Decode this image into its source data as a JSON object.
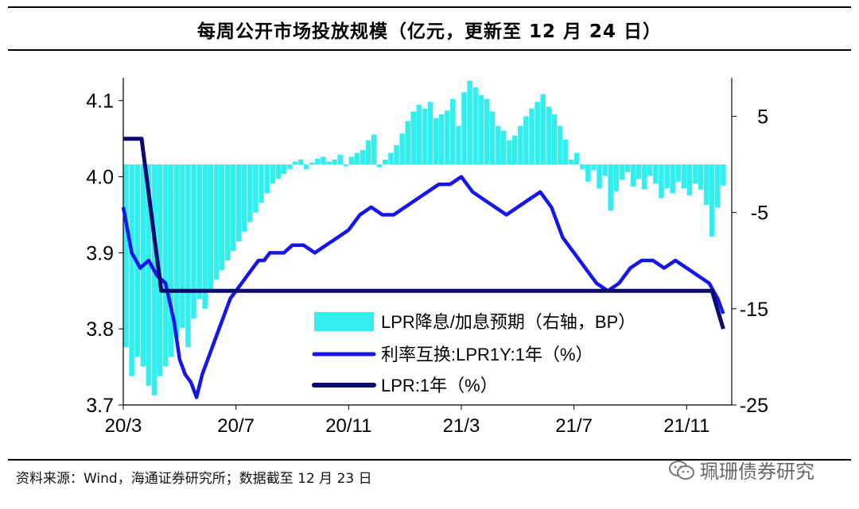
{
  "title": "每周公开市场投放规模（亿元，更新至 12 月 24 日）",
  "source": "资料来源：Wind，海通证券研究所；数据截至 12 月 23 日",
  "watermark": "珮珊债券研究",
  "colors": {
    "bar": "#33EEEE",
    "swap": "#1515EE",
    "lpr": "#0A0A70"
  },
  "chart_data": {
    "type": "bar+line",
    "title": "每周公开市场投放规模（亿元，更新至 12 月 24 日）",
    "x_ticks": [
      "20/3",
      "20/7",
      "20/11",
      "21/3",
      "21/7",
      "21/11"
    ],
    "x_tick_positions": [
      0,
      4,
      8,
      12,
      16,
      20
    ],
    "x_range": [
      0,
      21.6
    ],
    "y_left": {
      "ticks": [
        "4.1",
        "4.0",
        "3.9",
        "3.8",
        "3.7"
      ],
      "tick_values": [
        4.1,
        4.0,
        3.9,
        3.8,
        3.7
      ],
      "range": [
        3.7,
        4.13
      ]
    },
    "y_right": {
      "ticks": [
        "5",
        "-5",
        "-15",
        "-25"
      ],
      "tick_values": [
        5,
        -5,
        -15,
        -25
      ],
      "range": [
        -25,
        9
      ]
    },
    "legend": [
      "LPR降息/加息预期（右轴，BP）",
      "利率互换:LPR1Y:1年（%）",
      "LPR:1年（%）"
    ],
    "series": [
      {
        "name": "LPR降息/加息预期（右轴，BP）",
        "axis": "right",
        "type": "bar",
        "x": [
          0.1,
          0.3,
          0.5,
          0.7,
          0.9,
          1.1,
          1.3,
          1.5,
          1.7,
          1.9,
          2.1,
          2.3,
          2.5,
          2.7,
          2.9,
          3.1,
          3.3,
          3.5,
          3.7,
          3.9,
          4.1,
          4.3,
          4.5,
          4.7,
          4.9,
          5.1,
          5.3,
          5.5,
          5.7,
          5.9,
          6.1,
          6.3,
          6.5,
          6.7,
          6.9,
          7.1,
          7.3,
          7.5,
          7.7,
          7.9,
          8.1,
          8.3,
          8.5,
          8.7,
          8.9,
          9.1,
          9.3,
          9.5,
          9.7,
          9.9,
          10.1,
          10.3,
          10.5,
          10.7,
          10.9,
          11.1,
          11.3,
          11.5,
          11.7,
          11.9,
          12.1,
          12.3,
          12.5,
          12.7,
          12.9,
          13.1,
          13.3,
          13.5,
          13.7,
          13.9,
          14.1,
          14.3,
          14.5,
          14.7,
          14.9,
          15.1,
          15.3,
          15.5,
          15.7,
          15.9,
          16.1,
          16.3,
          16.5,
          16.7,
          16.9,
          17.1,
          17.3,
          17.5,
          17.7,
          17.9,
          18.1,
          18.3,
          18.5,
          18.7,
          18.9,
          19.1,
          19.3,
          19.5,
          19.7,
          19.9,
          20.1,
          20.3,
          20.5,
          20.7,
          20.9,
          21.1,
          21.3
        ],
        "values": [
          -19,
          -22,
          -20,
          -21,
          -23,
          -24,
          -22,
          -21,
          -20,
          -18,
          -17,
          -19,
          -16,
          -14,
          -15,
          -13,
          -12,
          -11,
          -10,
          -9,
          -8,
          -7,
          -6,
          -5,
          -4,
          -3,
          -2,
          -1.5,
          -1,
          -0.5,
          0.3,
          0.5,
          -0.5,
          0.2,
          0.6,
          0.8,
          0.3,
          0.5,
          1,
          -0.2,
          0.8,
          1.2,
          1.5,
          2.5,
          3.1,
          -0.3,
          0.5,
          1.2,
          2,
          3.2,
          4.5,
          5.5,
          6.2,
          5.8,
          6.5,
          4.8,
          5.2,
          5.6,
          6.8,
          4,
          7.5,
          8.7,
          8,
          7.2,
          6.8,
          5.5,
          4,
          3.5,
          2.5,
          3,
          4,
          5,
          5.8,
          6.5,
          7.3,
          6,
          5.2,
          4,
          2.6,
          0.5,
          1.2,
          -0.5,
          -1.8,
          -0.6,
          -2.5,
          -1.2,
          -4.8,
          -2.8,
          -1.6,
          -0.8,
          -2.3,
          -1.5,
          -2.6,
          -1.2,
          -2,
          -3.5,
          -2.5,
          -3,
          -1.8,
          -2.5,
          -3.2,
          -2,
          -2.6,
          -4.2,
          -7.5,
          -4.5,
          -2.2
        ]
      },
      {
        "name": "利率互换:LPR1Y:1年（%）",
        "axis": "left",
        "type": "line",
        "x": [
          0,
          0.3,
          0.6,
          0.9,
          1.2,
          1.5,
          1.8,
          2.0,
          2.2,
          2.4,
          2.6,
          2.8,
          3.0,
          3.2,
          3.4,
          3.6,
          3.8,
          4.0,
          4.2,
          4.4,
          4.6,
          4.8,
          5.0,
          5.2,
          5.4,
          5.7,
          6.0,
          6.4,
          6.8,
          7.2,
          7.6,
          8.0,
          8.4,
          8.8,
          9.2,
          9.6,
          10.0,
          10.4,
          10.8,
          11.2,
          11.6,
          12.0,
          12.4,
          12.8,
          13.2,
          13.6,
          14.0,
          14.4,
          14.8,
          15.2,
          15.6,
          16.0,
          16.4,
          16.8,
          17.2,
          17.6,
          18.0,
          18.4,
          18.8,
          19.2,
          19.6,
          20.0,
          20.4,
          20.8,
          21.1,
          21.3
        ],
        "values": [
          3.96,
          3.9,
          3.88,
          3.89,
          3.87,
          3.86,
          3.81,
          3.76,
          3.74,
          3.73,
          3.71,
          3.74,
          3.76,
          3.78,
          3.8,
          3.82,
          3.84,
          3.85,
          3.86,
          3.87,
          3.88,
          3.89,
          3.89,
          3.9,
          3.9,
          3.9,
          3.91,
          3.91,
          3.9,
          3.91,
          3.92,
          3.93,
          3.95,
          3.96,
          3.95,
          3.95,
          3.96,
          3.97,
          3.98,
          3.99,
          3.99,
          4.0,
          3.98,
          3.97,
          3.96,
          3.95,
          3.96,
          3.97,
          3.98,
          3.96,
          3.92,
          3.9,
          3.88,
          3.86,
          3.85,
          3.86,
          3.88,
          3.89,
          3.89,
          3.88,
          3.89,
          3.88,
          3.87,
          3.86,
          3.84,
          3.82
        ]
      },
      {
        "name": "LPR:1年（%）",
        "axis": "left",
        "type": "line",
        "x": [
          0,
          0.65,
          1.35,
          2.0,
          20.9,
          21.3
        ],
        "values": [
          4.05,
          4.05,
          3.85,
          3.85,
          3.85,
          3.8
        ]
      }
    ]
  }
}
